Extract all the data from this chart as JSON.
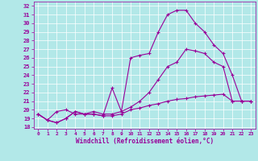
{
  "xlabel": "Windchill (Refroidissement éolien,°C)",
  "background_color": "#b2e8e8",
  "line_color": "#990099",
  "grid_color": "#ffffff",
  "xlim": [
    -0.5,
    23.5
  ],
  "ylim": [
    17.8,
    32.5
  ],
  "yticks": [
    18,
    19,
    20,
    21,
    22,
    23,
    24,
    25,
    26,
    27,
    28,
    29,
    30,
    31,
    32
  ],
  "xticks": [
    0,
    1,
    2,
    3,
    4,
    5,
    6,
    7,
    8,
    9,
    10,
    11,
    12,
    13,
    14,
    15,
    16,
    17,
    18,
    19,
    20,
    21,
    22,
    23
  ],
  "series": [
    {
      "x": [
        0,
        1,
        2,
        3,
        4,
        5,
        6,
        7,
        8,
        9,
        10,
        11,
        12,
        13,
        14,
        15,
        16,
        17,
        18,
        19,
        20,
        21,
        22,
        23
      ],
      "y": [
        19.5,
        18.8,
        18.5,
        19.0,
        19.8,
        19.5,
        19.5,
        19.3,
        19.3,
        19.5,
        20.0,
        20.2,
        20.5,
        20.7,
        21.0,
        21.2,
        21.3,
        21.5,
        21.6,
        21.7,
        21.8,
        21.0,
        21.0,
        21.0
      ]
    },
    {
      "x": [
        0,
        1,
        2,
        3,
        4,
        5,
        6,
        7,
        8,
        9,
        10,
        11,
        12,
        13,
        14,
        15,
        16,
        17,
        18,
        19,
        20,
        21,
        22,
        23
      ],
      "y": [
        19.5,
        18.8,
        19.8,
        20.0,
        19.5,
        19.5,
        19.8,
        19.5,
        19.5,
        19.8,
        20.3,
        21.0,
        22.0,
        23.5,
        25.0,
        25.5,
        27.0,
        26.8,
        26.5,
        25.5,
        25.0,
        21.0,
        21.0,
        21.0
      ]
    },
    {
      "x": [
        0,
        1,
        2,
        3,
        4,
        5,
        6,
        7,
        8,
        9,
        10,
        11,
        12,
        13,
        14,
        15,
        16,
        17,
        18,
        19,
        20,
        21,
        22,
        23
      ],
      "y": [
        19.5,
        18.8,
        18.5,
        19.0,
        19.8,
        19.5,
        19.5,
        19.3,
        22.5,
        19.8,
        26.0,
        26.3,
        26.5,
        29.0,
        31.0,
        31.5,
        31.5,
        30.0,
        29.0,
        27.5,
        26.5,
        24.0,
        21.0,
        21.0
      ]
    }
  ]
}
